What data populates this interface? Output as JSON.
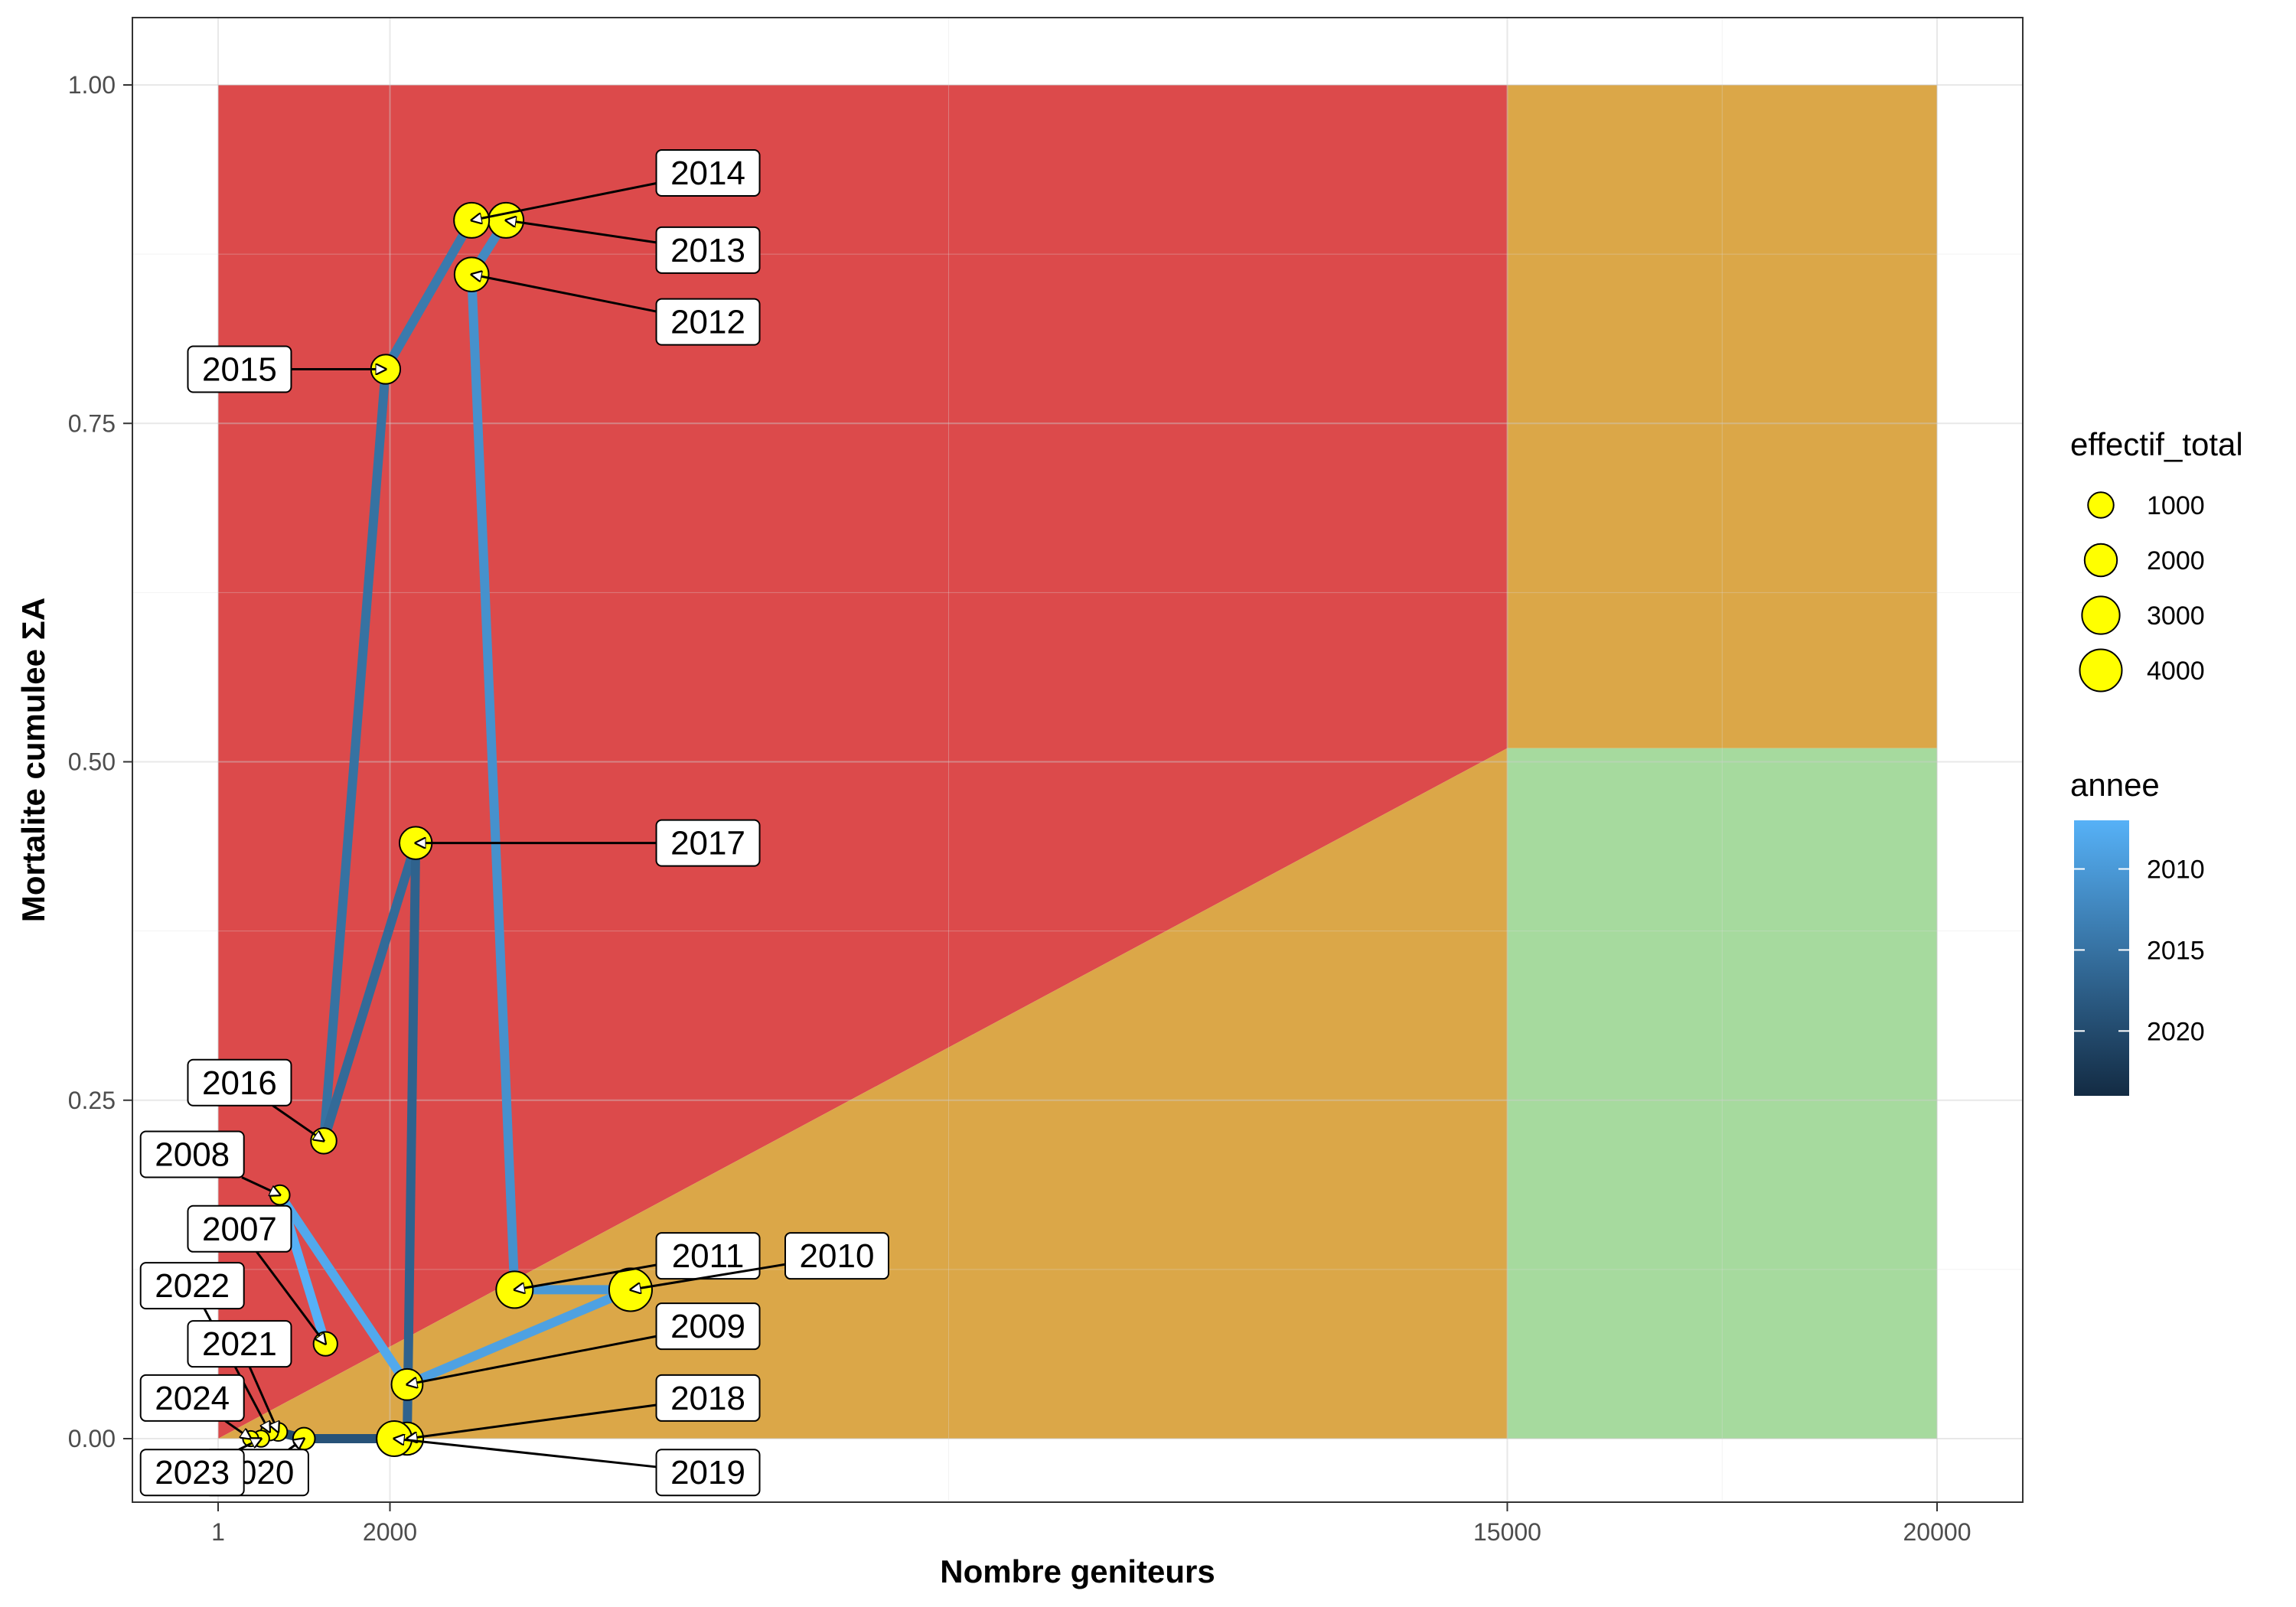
{
  "chart_data": {
    "type": "scatter",
    "xlabel": "Nombre geniteurs",
    "ylabel": "Mortalite cumulee  ΣA",
    "x_ticks": [
      1,
      2000,
      15000,
      20000
    ],
    "y_ticks": [
      0.0,
      0.25,
      0.5,
      0.75,
      1.0
    ],
    "y_tick_labels": [
      "0.00",
      "0.25",
      "0.50",
      "0.75",
      "1.00"
    ],
    "xlim": [
      -1000,
      21000
    ],
    "ylim": [
      -0.05,
      1.05
    ],
    "grid": true,
    "background_zones": [
      {
        "name": "red",
        "color": "#dc4a4b",
        "polygon": [
          [
            1,
            0
          ],
          [
            15000,
            0.51
          ],
          [
            15000,
            1.0
          ],
          [
            1,
            1.0
          ]
        ]
      },
      {
        "name": "orange-lower",
        "color": "#dba748",
        "polygon": [
          [
            1,
            0
          ],
          [
            15000,
            0
          ],
          [
            15000,
            0.51
          ]
        ]
      },
      {
        "name": "orange-upper",
        "color": "#dba748",
        "polygon": [
          [
            15000,
            0.51
          ],
          [
            20000,
            0.51
          ],
          [
            20000,
            1.0
          ],
          [
            15000,
            1.0
          ]
        ]
      },
      {
        "name": "green",
        "color": "#a6da9e",
        "polygon": [
          [
            15000,
            0
          ],
          [
            20000,
            0
          ],
          [
            20000,
            0.51
          ],
          [
            15000,
            0.51
          ]
        ]
      }
    ],
    "points": [
      {
        "annee": 2007,
        "label": "2007",
        "x": 1250,
        "y": 0.07,
        "effectif_total": 800
      },
      {
        "annee": 2008,
        "label": "2008",
        "x": 720,
        "y": 0.18,
        "effectif_total": 400
      },
      {
        "annee": 2009,
        "label": "2009",
        "x": 2200,
        "y": 0.04,
        "effectif_total": 1800
      },
      {
        "annee": 2010,
        "label": "2010",
        "x": 4800,
        "y": 0.11,
        "effectif_total": 4200
      },
      {
        "annee": 2011,
        "label": "2011",
        "x": 3450,
        "y": 0.11,
        "effectif_total": 2800
      },
      {
        "annee": 2012,
        "label": "2012",
        "x": 2950,
        "y": 0.86,
        "effectif_total": 2300
      },
      {
        "annee": 2013,
        "label": "2013",
        "x": 3350,
        "y": 0.9,
        "effectif_total": 2500
      },
      {
        "annee": 2014,
        "label": "2014",
        "x": 2950,
        "y": 0.9,
        "effectif_total": 2500
      },
      {
        "annee": 2015,
        "label": "2015",
        "x": 1950,
        "y": 0.79,
        "effectif_total": 1500
      },
      {
        "annee": 2016,
        "label": "2016",
        "x": 1230,
        "y": 0.22,
        "effectif_total": 1000
      },
      {
        "annee": 2017,
        "label": "2017",
        "x": 2300,
        "y": 0.44,
        "effectif_total": 2000
      },
      {
        "annee": 2018,
        "label": "2018",
        "x": 2200,
        "y": 0.0,
        "effectif_total": 2000
      },
      {
        "annee": 2019,
        "label": "2019",
        "x": 2050,
        "y": 0.0,
        "effectif_total": 2500
      },
      {
        "annee": 2020,
        "label": "2020",
        "x": 1000,
        "y": 0.0,
        "effectif_total": 600
      },
      {
        "annee": 2021,
        "label": "2021",
        "x": 700,
        "y": 0.005,
        "effectif_total": 300
      },
      {
        "annee": 2022,
        "label": "2022",
        "x": 600,
        "y": 0.005,
        "effectif_total": 250
      },
      {
        "annee": 2023,
        "label": "2023",
        "x": 500,
        "y": 0.0,
        "effectif_total": 200
      },
      {
        "annee": 2024,
        "label": "2024",
        "x": 380,
        "y": 0.0,
        "effectif_total": 150
      }
    ],
    "labels": [
      {
        "text": "2014",
        "lx": 5700,
        "ly": 0.935,
        "sx": 2950,
        "sy": 0.9
      },
      {
        "text": "2013",
        "lx": 5700,
        "ly": 0.878,
        "sx": 3350,
        "sy": 0.9
      },
      {
        "text": "2012",
        "lx": 5700,
        "ly": 0.825,
        "sx": 2950,
        "sy": 0.86
      },
      {
        "text": "2015",
        "lx": 250,
        "ly": 0.79,
        "sx": 1950,
        "sy": 0.79
      },
      {
        "text": "2017",
        "lx": 5700,
        "ly": 0.44,
        "sx": 2300,
        "sy": 0.44
      },
      {
        "text": "2016",
        "lx": 250,
        "ly": 0.263,
        "sx": 1230,
        "sy": 0.22
      },
      {
        "text": "2008",
        "lx": -300,
        "ly": 0.21,
        "sx": 720,
        "sy": 0.18
      },
      {
        "text": "2007",
        "lx": 250,
        "ly": 0.155,
        "sx": 1250,
        "sy": 0.07
      },
      {
        "text": "2011",
        "lx": 5700,
        "ly": 0.135,
        "sx": 3450,
        "sy": 0.11
      },
      {
        "text": "2010",
        "lx": 7200,
        "ly": 0.135,
        "sx": 4800,
        "sy": 0.11
      },
      {
        "text": "2022",
        "lx": -300,
        "ly": 0.113,
        "sx": 600,
        "sy": 0.005
      },
      {
        "text": "2009",
        "lx": 5700,
        "ly": 0.083,
        "sx": 2200,
        "sy": 0.04
      },
      {
        "text": "2021",
        "lx": 250,
        "ly": 0.07,
        "sx": 700,
        "sy": 0.005
      },
      {
        "text": "2024",
        "lx": -300,
        "ly": 0.03,
        "sx": 380,
        "sy": 0.0
      },
      {
        "text": "2018",
        "lx": 5700,
        "ly": 0.03,
        "sx": 2200,
        "sy": 0.0
      },
      {
        "text": "2020",
        "lx": 450,
        "ly": -0.025,
        "sx": 1000,
        "sy": 0.0
      },
      {
        "text": "2023",
        "lx": -300,
        "ly": -0.025,
        "sx": 500,
        "sy": 0.0
      },
      {
        "text": "2019",
        "lx": 5700,
        "ly": -0.025,
        "sx": 2050,
        "sy": 0.0
      }
    ],
    "legend_size": {
      "title": "effectif_total",
      "entries": [
        {
          "label": "1000",
          "value": 1000
        },
        {
          "label": "2000",
          "value": 2000
        },
        {
          "label": "3000",
          "value": 3000
        },
        {
          "label": "4000",
          "value": 4000
        }
      ]
    },
    "legend_color": {
      "title": "annee",
      "breaks": [
        {
          "label": "2010",
          "value": 2010
        },
        {
          "label": "2015",
          "value": 2015
        },
        {
          "label": "2020",
          "value": 2020
        }
      ],
      "range": [
        2007,
        2024
      ],
      "color_low": "#56b1f7",
      "color_high": "#132b43"
    },
    "point_fill": "#ffff00"
  }
}
